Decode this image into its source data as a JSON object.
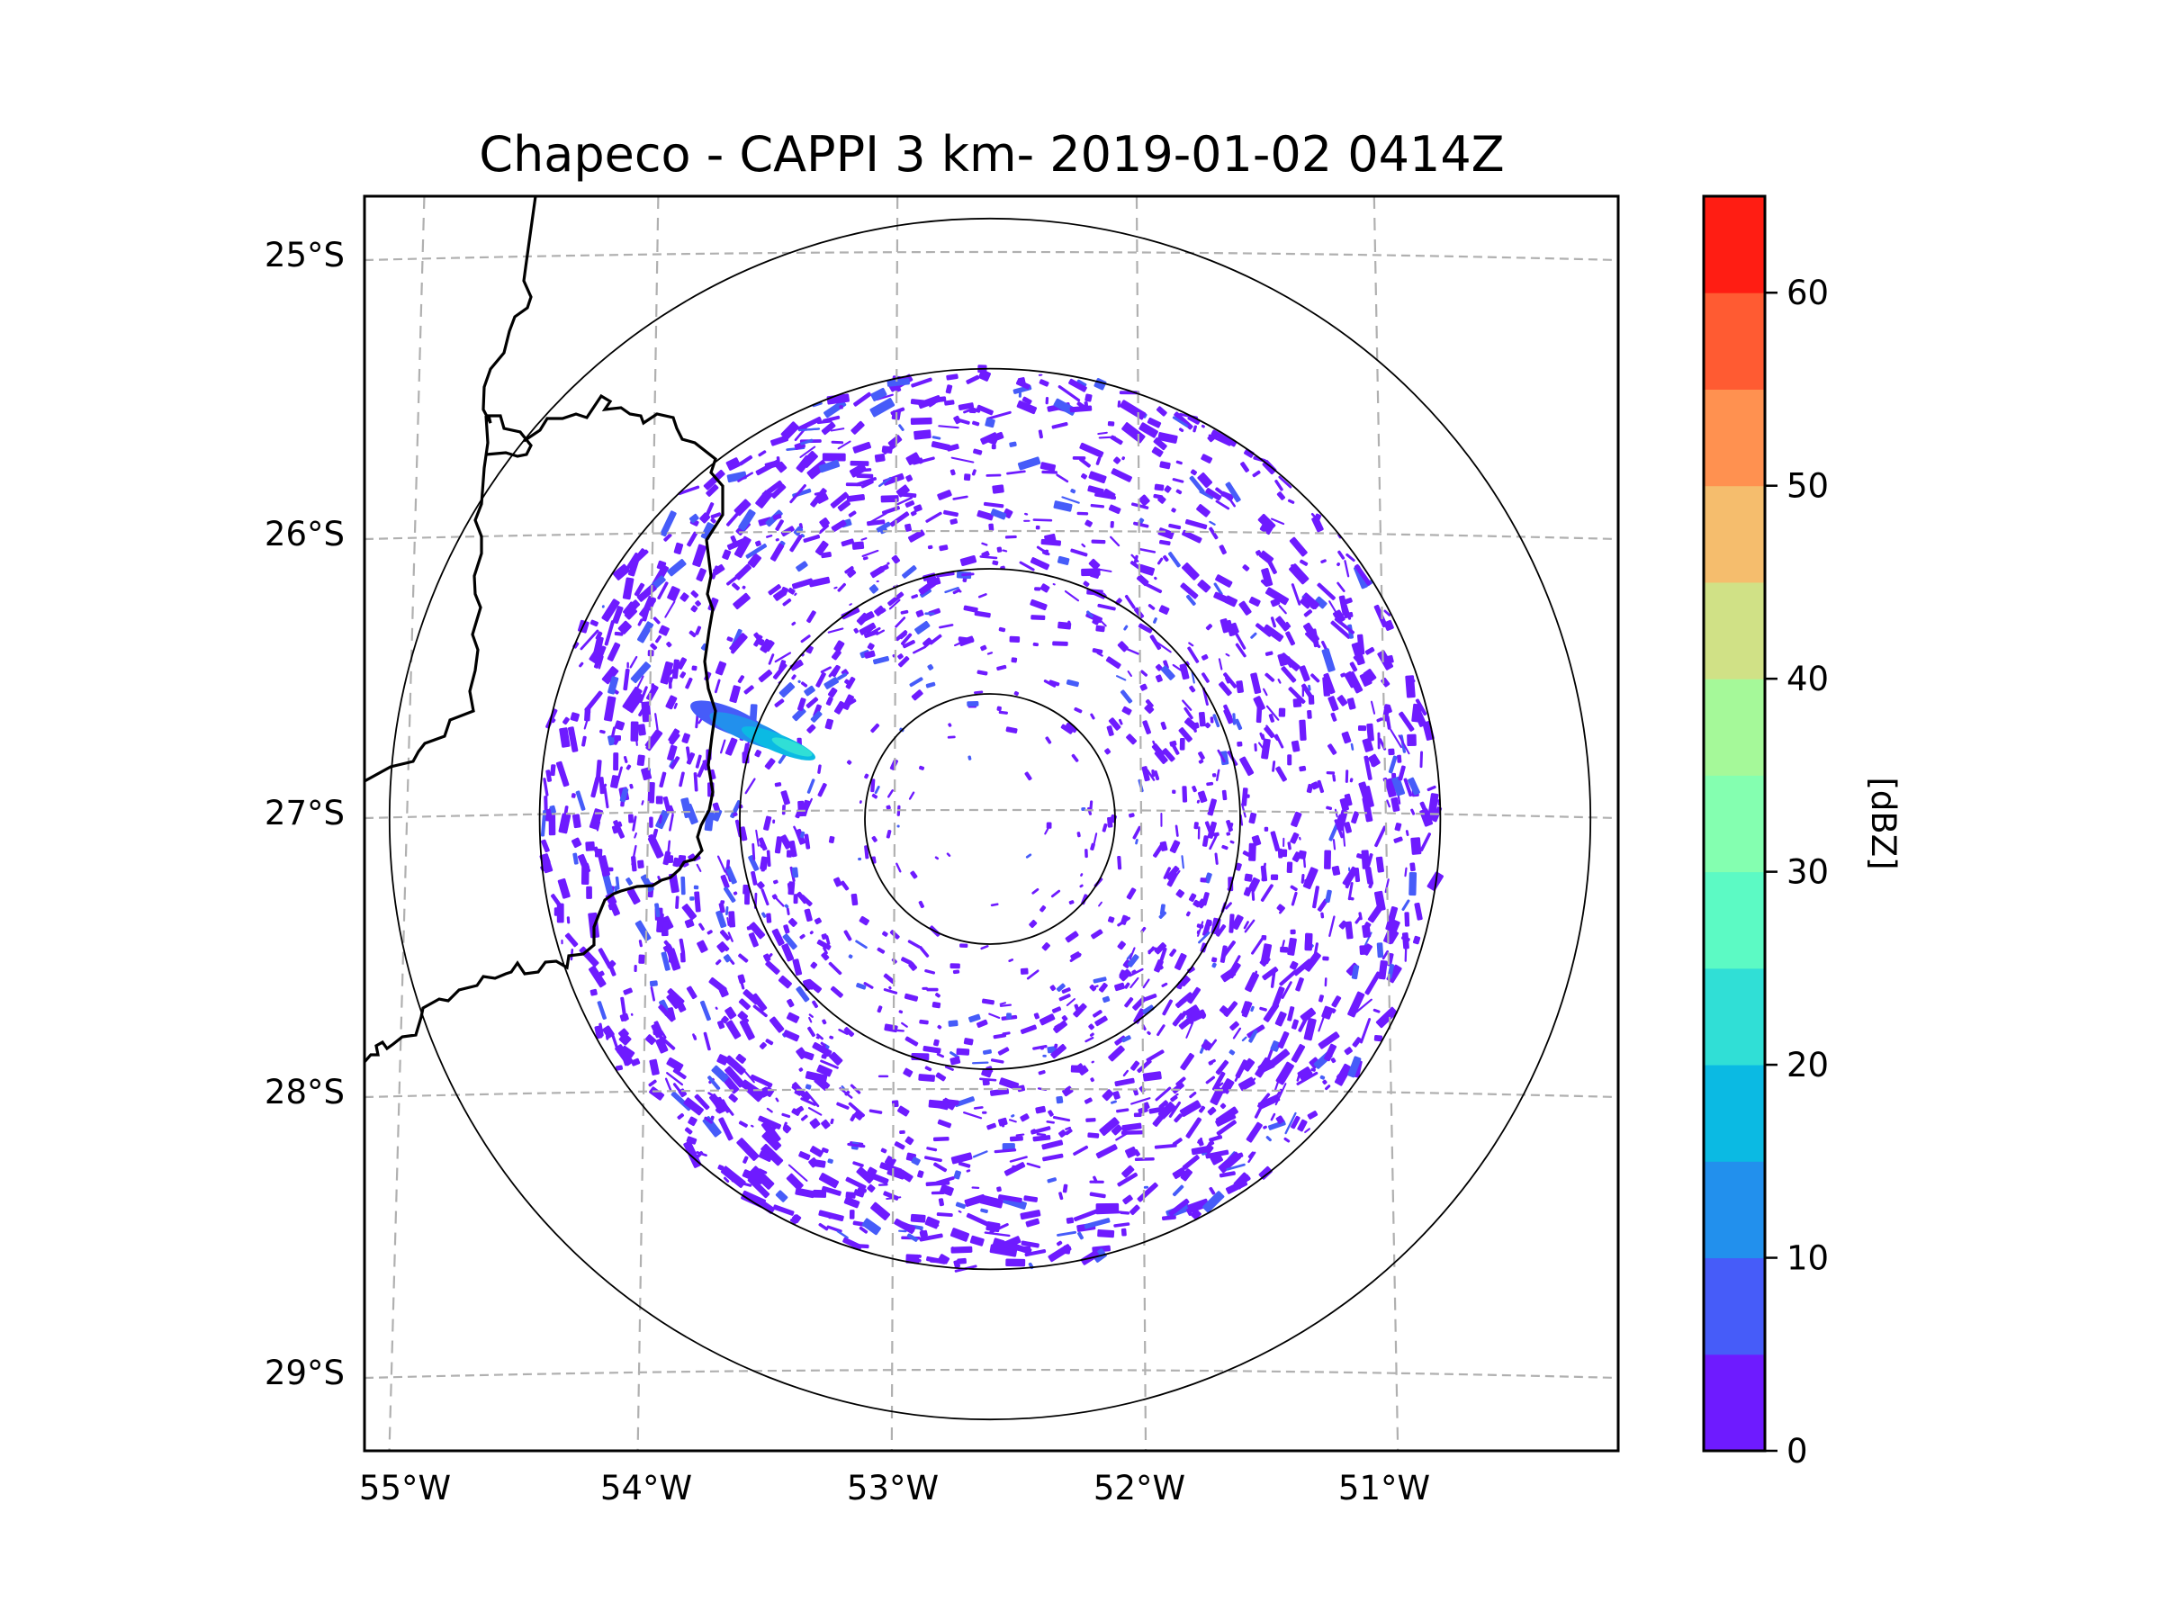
{
  "chart_data": {
    "type": "heatmap",
    "title": "Chapeco - CAPPI 3 km- 2019-01-02 0414Z",
    "product": "CAPPI",
    "station": "Chapeco",
    "altitude": "3 km",
    "datetime": "2019-01-02 0414Z",
    "xlabel": "",
    "ylabel": "",
    "x_ticks": [
      {
        "value": -55,
        "label": "55°W"
      },
      {
        "value": -54,
        "label": "54°W"
      },
      {
        "value": -53,
        "label": "53°W"
      },
      {
        "value": -52,
        "label": "52°W"
      },
      {
        "value": -51,
        "label": "51°W"
      }
    ],
    "y_ticks": [
      {
        "value": -25,
        "label": "25°S"
      },
      {
        "value": -26,
        "label": "26°S"
      },
      {
        "value": -27,
        "label": "27°S"
      },
      {
        "value": -28,
        "label": "28°S"
      },
      {
        "value": -29,
        "label": "29°S"
      }
    ],
    "xlim": [
      -55.2,
      -50.1
    ],
    "ylim": [
      -29.3,
      -24.8
    ],
    "grid": true,
    "radar_center": {
      "lon": -52.6,
      "lat": -27.05
    },
    "range_rings_relative": [
      0.2,
      0.4,
      0.72,
      0.96
    ],
    "colorbar": {
      "label": "[dBZ]",
      "min": 0,
      "max": 65,
      "step": 5,
      "ticks": [
        0,
        10,
        20,
        30,
        40,
        50,
        60
      ],
      "colors": [
        "#6e1bff",
        "#465cf9",
        "#2290ed",
        "#0bbae3",
        "#30dfd6",
        "#5cfac4",
        "#84ffb0",
        "#a5f999",
        "#d0e186",
        "#f5bd6d",
        "#ff9150",
        "#ff5b32",
        "#ff1d13"
      ]
    },
    "echo_summary": {
      "dominant_range_dbz": [
        0,
        10
      ],
      "max_observed_dbz_approx": 25,
      "notable_feature": "elongated echo band west of radar near 53.4°W, 26.8°S reaching ~20-25 dBZ"
    }
  }
}
